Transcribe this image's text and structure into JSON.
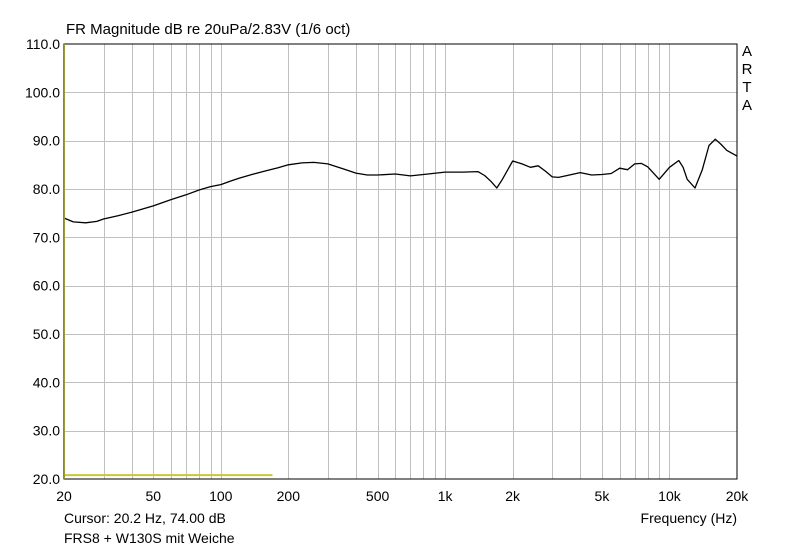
{
  "chart_data": {
    "type": "line",
    "title": "FR Magnitude dB re 20uPa/2.83V (1/6 oct)",
    "xlabel": "Frequency (Hz)",
    "ylabel": "",
    "x_scale": "log",
    "xlim": [
      20,
      20000
    ],
    "ylim": [
      20,
      110
    ],
    "grid": true,
    "y_ticks": [
      "110.0",
      "100.0",
      "90.0",
      "80.0",
      "70.0",
      "60.0",
      "50.0",
      "40.0",
      "30.0",
      "20.0"
    ],
    "x_ticks": [
      {
        "value": 20,
        "label": "20"
      },
      {
        "value": 50,
        "label": "50"
      },
      {
        "value": 100,
        "label": "100"
      },
      {
        "value": 200,
        "label": "200"
      },
      {
        "value": 500,
        "label": "500"
      },
      {
        "value": 1000,
        "label": "1k"
      },
      {
        "value": 2000,
        "label": "2k"
      },
      {
        "value": 5000,
        "label": "5k"
      },
      {
        "value": 10000,
        "label": "10k"
      },
      {
        "value": 20000,
        "label": "20k"
      }
    ],
    "series": [
      {
        "color": "#000000",
        "x": [
          20,
          22,
          25,
          28,
          30,
          35,
          40,
          50,
          60,
          70,
          80,
          90,
          100,
          110,
          120,
          140,
          160,
          180,
          200,
          230,
          260,
          300,
          350,
          400,
          450,
          500,
          600,
          700,
          800,
          1000,
          1200,
          1400,
          1500,
          1600,
          1700,
          1800,
          2000,
          2200,
          2400,
          2600,
          2800,
          3000,
          3200,
          3500,
          4000,
          4500,
          5000,
          5500,
          6000,
          6500,
          7000,
          7500,
          8000,
          9000,
          10000,
          11000,
          11500,
          12000,
          13000,
          14000,
          15000,
          16000,
          17000,
          18000,
          20000
        ],
        "y": [
          74.0,
          73.2,
          73.0,
          73.3,
          73.8,
          74.5,
          75.2,
          76.5,
          77.8,
          78.8,
          79.8,
          80.5,
          80.9,
          81.6,
          82.2,
          83.1,
          83.8,
          84.4,
          85.0,
          85.4,
          85.5,
          85.2,
          84.2,
          83.3,
          82.9,
          82.9,
          83.1,
          82.7,
          83.0,
          83.5,
          83.5,
          83.6,
          82.8,
          81.6,
          80.2,
          82.0,
          85.8,
          85.2,
          84.5,
          84.8,
          83.7,
          82.5,
          82.4,
          82.8,
          83.4,
          82.9,
          83.0,
          83.2,
          84.3,
          84.0,
          85.2,
          85.3,
          84.6,
          82.0,
          84.5,
          85.9,
          84.5,
          82.0,
          80.2,
          84.0,
          89.0,
          90.3,
          89.2,
          88.0,
          86.8
        ]
      },
      {
        "color": "#c8c832",
        "x": [
          20,
          170
        ],
        "y": [
          20.8,
          20.8
        ]
      }
    ]
  },
  "cursor_text": "Cursor: 20.2 Hz, 74.00 dB",
  "footer_text": "FRS8 + W130S mit Weiche",
  "brand_letters": [
    "A",
    "R",
    "T",
    "A"
  ],
  "colors": {
    "grid": "#c0c0c0",
    "frame": "#000000",
    "axis_accent": "#9a9a3a"
  }
}
